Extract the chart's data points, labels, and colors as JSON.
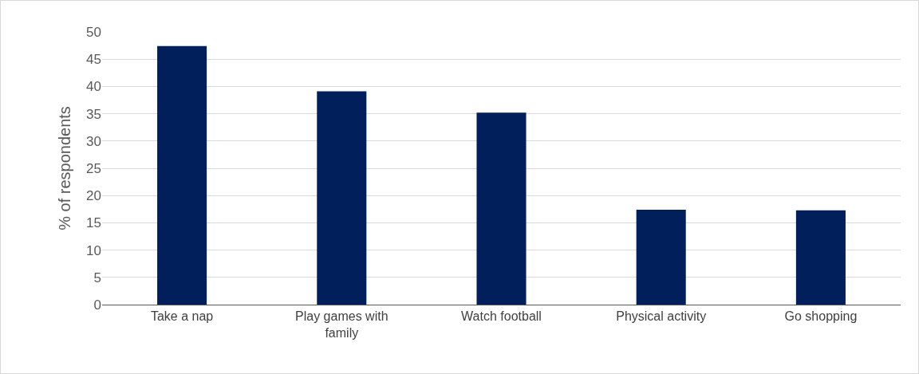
{
  "chart_data": {
    "type": "bar",
    "ylabel": "% of respondents",
    "categories": [
      "Take a nap",
      "Play games with family",
      "Watch football",
      "Physical activity",
      "Go shopping"
    ],
    "values": [
      47.4,
      39.1,
      35.2,
      17.4,
      17.3
    ],
    "color": "#001f5b",
    "ylim": [
      0,
      50
    ],
    "yticks": [
      0,
      5,
      10,
      15,
      20,
      25,
      30,
      35,
      40,
      45,
      50
    ],
    "grid": "y"
  }
}
